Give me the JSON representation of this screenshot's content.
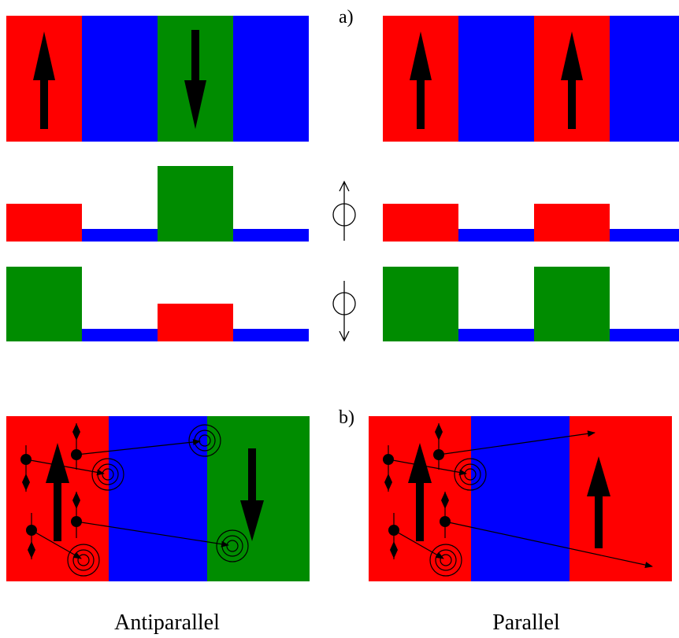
{
  "labels": {
    "part_a": "a)",
    "part_b": "b)",
    "left_caption": "Antiparallel",
    "right_caption": "Parallel"
  },
  "colors": {
    "red": "#ff0000",
    "blue": "#0000ff",
    "green": "#008c00",
    "ink": "#000000"
  },
  "top_row": {
    "antiparallel_layers": [
      "red",
      "blue",
      "green",
      "blue"
    ],
    "antiparallel_arrows": [
      "up",
      "none",
      "down",
      "none"
    ],
    "parallel_layers": [
      "red",
      "blue",
      "red",
      "blue"
    ],
    "parallel_arrows": [
      "up",
      "none",
      "up",
      "none"
    ]
  },
  "bottom_row": {
    "antiparallel_layers": [
      "red",
      "blue",
      "green"
    ],
    "antiparallel_arrows": [
      "up",
      "none",
      "down"
    ],
    "parallel_layers": [
      "red",
      "blue",
      "red"
    ],
    "parallel_arrows": [
      "up",
      "none",
      "up"
    ]
  },
  "spin_channels": [
    "spin-up",
    "spin-down"
  ]
}
